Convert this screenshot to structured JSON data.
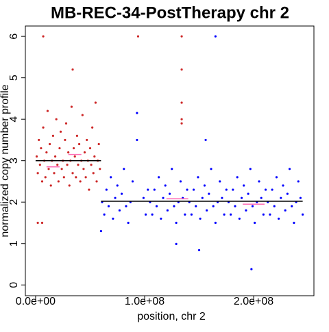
{
  "chart_data": {
    "type": "scatter",
    "title": "MB-REC-34-PostTherapy chr 2",
    "xlabel": "position, chr 2",
    "ylabel": "normalized copy number profile",
    "xlim": [
      -9400000,
      255300000
    ],
    "ylim": [
      -0.26,
      6.25
    ],
    "xticks": [
      {
        "value": 0,
        "label": "0.0e+00"
      },
      {
        "value": 100000000,
        "label": "1.0e+08"
      },
      {
        "value": 200000000,
        "label": "2.0e+08"
      }
    ],
    "yticks": [
      0,
      1,
      2,
      3,
      4,
      5,
      6
    ],
    "series": [
      {
        "color": "#cd2626",
        "x": [
          1000000,
          2000000,
          3000000,
          4000000,
          5000000,
          6000000,
          7000000,
          8000000,
          9000000,
          10000000,
          11000000,
          12000000,
          13000000,
          14000000,
          15000000,
          16000000,
          17000000,
          18000000,
          19000000,
          20000000,
          21000000,
          22000000,
          23000000,
          24000000,
          25000000,
          26000000,
          27000000,
          28000000,
          29000000,
          30000000,
          31000000,
          32000000,
          33000000,
          34000000,
          35000000,
          36000000,
          37000000,
          38000000,
          39000000,
          40000000,
          41000000,
          42000000,
          43000000,
          44000000,
          45000000,
          46000000,
          47000000,
          48000000,
          49000000,
          50000000,
          51000000,
          52000000,
          53000000,
          54000000,
          55000000,
          56000000,
          57000000,
          58000000,
          59000000,
          7000000,
          2000000,
          6000000,
          34000000,
          94000000,
          134000000,
          134000000,
          134000000,
          134000000,
          134000000
        ],
        "values": [
          3.1,
          2.7,
          3.5,
          2.9,
          3.3,
          2.5,
          3.8,
          3.0,
          2.6,
          3.2,
          4.2,
          2.8,
          3.4,
          2.4,
          3.0,
          3.6,
          2.7,
          3.1,
          4.0,
          2.9,
          2.5,
          3.3,
          3.7,
          2.8,
          3.0,
          2.6,
          3.5,
          3.9,
          2.9,
          3.2,
          2.4,
          3.0,
          4.3,
          2.7,
          3.3,
          3.1,
          2.6,
          3.6,
          2.9,
          3.4,
          2.5,
          3.0,
          4.1,
          2.8,
          3.2,
          2.6,
          3.5,
          3.0,
          2.3,
          3.3,
          2.9,
          3.8,
          2.7,
          3.1,
          4.4,
          2.5,
          3.0,
          3.4,
          2.8,
          6,
          1.5,
          1.5,
          5.2,
          6,
          6,
          5.2,
          4.4,
          4.0,
          3.9
        ]
      },
      {
        "color": "#0000ff",
        "x": [
          61000000,
          63000000,
          65000000,
          67000000,
          69000000,
          71000000,
          73000000,
          75000000,
          77000000,
          79000000,
          81000000,
          83000000,
          85000000,
          87000000,
          89000000,
          99000000,
          101000000,
          103000000,
          105000000,
          107000000,
          109000000,
          111000000,
          113000000,
          115000000,
          117000000,
          119000000,
          121000000,
          123000000,
          125000000,
          127000000,
          129000000,
          131000000,
          133000000,
          135000000,
          137000000,
          139000000,
          141000000,
          143000000,
          145000000,
          147000000,
          149000000,
          151000000,
          153000000,
          155000000,
          157000000,
          159000000,
          161000000,
          163000000,
          165000000,
          167000000,
          169000000,
          171000000,
          173000000,
          175000000,
          177000000,
          179000000,
          181000000,
          183000000,
          185000000,
          187000000,
          189000000,
          191000000,
          193000000,
          195000000,
          197000000,
          199000000,
          201000000,
          203000000,
          205000000,
          207000000,
          209000000,
          211000000,
          213000000,
          215000000,
          217000000,
          219000000,
          221000000,
          223000000,
          225000000,
          227000000,
          229000000,
          231000000,
          233000000,
          235000000,
          237000000,
          239000000,
          241000000,
          243000000,
          245000000,
          93000000,
          93000000,
          129000000,
          150000000,
          198000000,
          156000000,
          165000000,
          60000000
        ],
        "values": [
          2.0,
          1.7,
          2.3,
          1.9,
          2.6,
          1.6,
          2.1,
          2.4,
          1.8,
          2.2,
          2.8,
          1.9,
          1.5,
          2.0,
          2.5,
          2.1,
          1.7,
          2.3,
          2.0,
          1.7,
          2.3,
          1.9,
          2.6,
          1.6,
          2.1,
          2.4,
          1.8,
          2.2,
          2.8,
          1.9,
          1.5,
          2.0,
          2.5,
          2.1,
          1.7,
          2.3,
          2.0,
          1.7,
          2.3,
          1.9,
          2.6,
          1.6,
          2.1,
          2.4,
          1.8,
          2.2,
          2.8,
          1.9,
          1.5,
          2.0,
          2.5,
          2.1,
          1.7,
          2.3,
          2.0,
          1.7,
          2.3,
          1.9,
          2.6,
          1.6,
          2.1,
          2.4,
          1.8,
          2.2,
          2.8,
          1.9,
          1.5,
          2.0,
          2.5,
          2.1,
          1.7,
          2.3,
          2.0,
          1.7,
          2.3,
          1.9,
          2.6,
          1.6,
          2.1,
          2.4,
          1.8,
          2.2,
          2.8,
          1.9,
          1.5,
          2.0,
          2.5,
          2.1,
          1.7,
          4.15,
          3.5,
          0.99,
          0.84,
          0.38,
          3.5,
          6,
          1.3
        ]
      }
    ],
    "segments": [
      {
        "color": "#ff69b4",
        "x": [
          10000000,
          22000000
        ],
        "values": [
          2.85,
          2.85
        ]
      },
      {
        "color": "#ff69b4",
        "x": [
          30000000,
          42000000
        ],
        "values": [
          3.15,
          3.15
        ]
      },
      {
        "color": "#ff69b4",
        "x": [
          120000000,
          140000000
        ],
        "values": [
          2.08,
          2.08
        ]
      },
      {
        "color": "#ff69b4",
        "x": [
          190000000,
          210000000
        ],
        "values": [
          1.95,
          1.95
        ]
      },
      {
        "color": "#000000",
        "x": [
          0,
          60000000
        ],
        "values": [
          3.0,
          3.0
        ]
      },
      {
        "color": "#000000",
        "x": [
          60000000,
          245000000
        ],
        "values": [
          2.02,
          2.02
        ]
      }
    ]
  }
}
